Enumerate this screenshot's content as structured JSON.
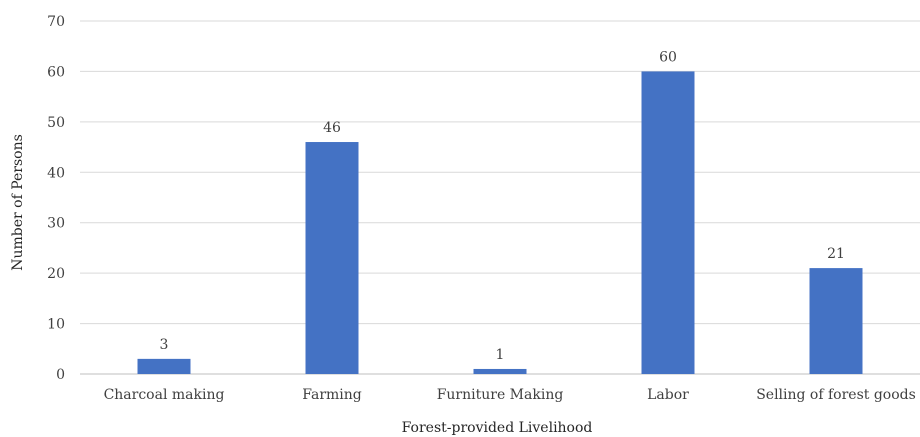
{
  "chart_data": {
    "type": "bar",
    "categories": [
      "Charcoal making",
      "Farming",
      "Furniture Making",
      "Labor",
      "Selling of forest goods"
    ],
    "values": [
      3,
      46,
      1,
      60,
      21
    ],
    "title": "",
    "xlabel": "Forest-provided Livelihood",
    "ylabel": "Number of Persons",
    "ylim": [
      0,
      70
    ],
    "yticks": [
      0,
      10,
      20,
      30,
      40,
      50,
      60,
      70
    ],
    "grid": true,
    "bar_color": "#4472C4",
    "gridline_color": "#D9D9D9",
    "data_labels": true
  }
}
